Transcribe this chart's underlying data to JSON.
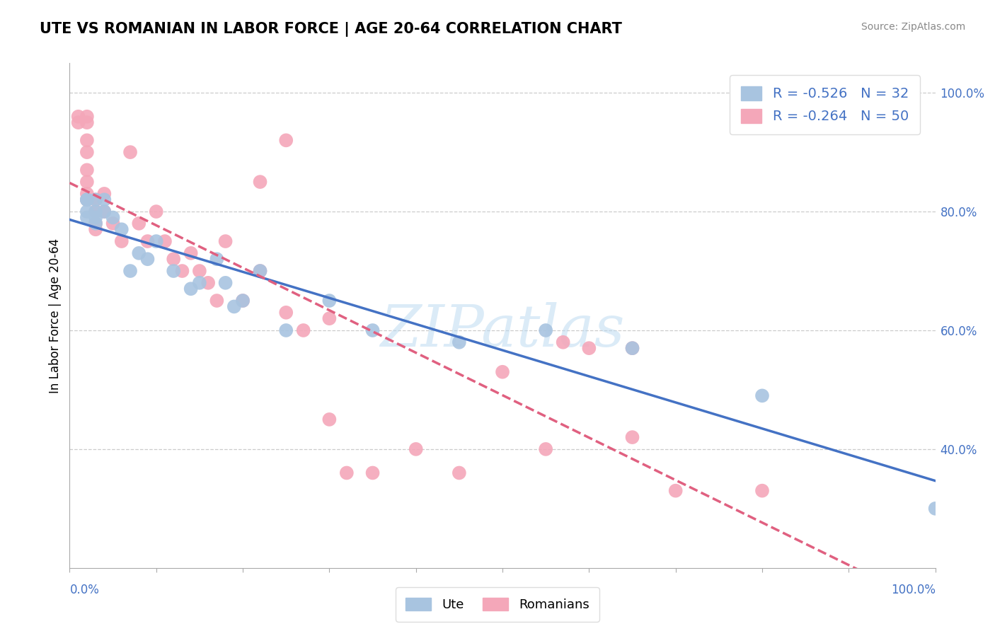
{
  "title": "UTE VS ROMANIAN IN LABOR FORCE | AGE 20-64 CORRELATION CHART",
  "ylabel": "In Labor Force | Age 20-64",
  "source": "Source: ZipAtlas.com",
  "ute_R": -0.526,
  "ute_N": 32,
  "romanian_R": -0.264,
  "romanian_N": 50,
  "ytick_labels": [
    "40.0%",
    "60.0%",
    "80.0%",
    "100.0%"
  ],
  "ytick_values": [
    0.4,
    0.6,
    0.8,
    1.0
  ],
  "ute_color": "#a8c4e0",
  "ute_line_color": "#4472c4",
  "romanian_color": "#f4a7b9",
  "romanian_line_color": "#e06080",
  "watermark": "ZIPatlas",
  "ute_x": [
    0.02,
    0.02,
    0.02,
    0.02,
    0.03,
    0.03,
    0.03,
    0.03,
    0.04,
    0.04,
    0.05,
    0.06,
    0.07,
    0.08,
    0.09,
    0.1,
    0.12,
    0.14,
    0.15,
    0.17,
    0.18,
    0.19,
    0.2,
    0.22,
    0.25,
    0.3,
    0.35,
    0.45,
    0.55,
    0.65,
    0.8,
    1.0
  ],
  "ute_y": [
    0.82,
    0.82,
    0.8,
    0.79,
    0.82,
    0.8,
    0.79,
    0.78,
    0.82,
    0.8,
    0.79,
    0.77,
    0.7,
    0.73,
    0.72,
    0.75,
    0.7,
    0.67,
    0.68,
    0.72,
    0.68,
    0.64,
    0.65,
    0.7,
    0.6,
    0.65,
    0.6,
    0.58,
    0.6,
    0.57,
    0.49,
    0.3
  ],
  "romanian_x": [
    0.01,
    0.01,
    0.02,
    0.02,
    0.02,
    0.02,
    0.02,
    0.02,
    0.02,
    0.02,
    0.03,
    0.03,
    0.03,
    0.03,
    0.04,
    0.04,
    0.05,
    0.06,
    0.07,
    0.08,
    0.09,
    0.1,
    0.11,
    0.12,
    0.13,
    0.14,
    0.15,
    0.16,
    0.17,
    0.18,
    0.2,
    0.22,
    0.25,
    0.27,
    0.3,
    0.32,
    0.35,
    0.4,
    0.45,
    0.5,
    0.55,
    0.57,
    0.6,
    0.65,
    0.65,
    0.7,
    0.8,
    0.22,
    0.25,
    0.3
  ],
  "romanian_y": [
    0.96,
    0.95,
    0.96,
    0.95,
    0.92,
    0.9,
    0.87,
    0.85,
    0.83,
    0.82,
    0.82,
    0.8,
    0.78,
    0.77,
    0.8,
    0.83,
    0.78,
    0.75,
    0.9,
    0.78,
    0.75,
    0.8,
    0.75,
    0.72,
    0.7,
    0.73,
    0.7,
    0.68,
    0.65,
    0.75,
    0.65,
    0.7,
    0.63,
    0.6,
    0.62,
    0.36,
    0.36,
    0.4,
    0.36,
    0.53,
    0.4,
    0.58,
    0.57,
    0.57,
    0.42,
    0.33,
    0.33,
    0.85,
    0.92,
    0.45
  ]
}
